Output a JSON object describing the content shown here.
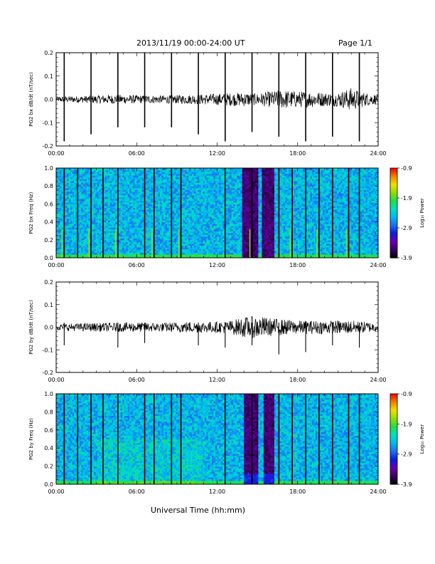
{
  "header": {
    "title": "2013/11/19  00:00-24:00 UT",
    "page": "Page 1/1"
  },
  "footer": {
    "xlabel": "Universal Time (hh:mm)"
  },
  "colors": {
    "trace": "#000000",
    "background": "#ffffff",
    "colorbar": [
      "#000000",
      "#3a0063",
      "#6a00b0",
      "#0a1de0",
      "#1f6ff0",
      "#00b8f0",
      "#00e0c0",
      "#20e040",
      "#90e000",
      "#f0e000",
      "#f08000",
      "#f00000"
    ]
  },
  "chart_data": [
    {
      "type": "line",
      "ylabel": "PG2 bx dB/dt (nT/sec)",
      "xlim": [
        0,
        24
      ],
      "ylim": [
        -0.2,
        0.2
      ],
      "xticks": [
        "00:00",
        "06:00",
        "12:00",
        "18:00",
        "24:00"
      ],
      "yticks": [
        "-0.2",
        "-0.1",
        "0.0",
        "0.1",
        "0.2"
      ],
      "spike_hours": [
        0.6,
        2.6,
        4.6,
        6.6,
        8.6,
        10.6,
        12.6,
        14.6,
        16.6,
        18.6,
        20.6,
        22.6
      ],
      "spike_min": [
        -0.18,
        -0.15,
        -0.12,
        -0.12,
        -0.12,
        -0.15,
        -0.18,
        -0.14,
        -0.16,
        -0.18,
        -0.16,
        -0.18
      ],
      "noise_envelope": {
        "hours": [
          0,
          2,
          4,
          6,
          8,
          10,
          12,
          13,
          14,
          15,
          16,
          17,
          18,
          19,
          20,
          21,
          22,
          23,
          24
        ],
        "amplitude": [
          0.012,
          0.015,
          0.02,
          0.018,
          0.017,
          0.02,
          0.025,
          0.028,
          0.03,
          0.025,
          0.035,
          0.04,
          0.035,
          0.035,
          0.03,
          0.03,
          0.05,
          0.03,
          0.02
        ]
      }
    },
    {
      "type": "heatmap",
      "ylabel": "PG2 bx Freq (Hz)",
      "xlim": [
        0,
        24
      ],
      "ylim": [
        0.0,
        1.0
      ],
      "xticks": [
        "00:00",
        "06:00",
        "12:00",
        "18:00",
        "24:00"
      ],
      "yticks": [
        "0.0",
        "0.2",
        "0.4",
        "0.6",
        "0.8",
        "1.0"
      ],
      "colorbar_label": "Log₁₀ Power",
      "colorbar_ticks": [
        "-0.9",
        "-1.9",
        "-2.9",
        "-3.9"
      ],
      "clim": [
        -3.9,
        -0.9
      ],
      "dark_band_hours": [
        13.9,
        15.1
      ],
      "dark_band_hours_2": [
        15.4,
        16.3
      ],
      "vertical_lines": [
        0.6,
        1.6,
        2.6,
        3.5,
        4.6,
        6.6,
        7.3,
        8.6,
        9.3,
        12.6,
        14.6,
        16.6,
        17.6,
        18.6,
        19.6,
        20.6,
        21.8,
        22.6
      ]
    },
    {
      "type": "line",
      "ylabel": "PG2 by dB/dt (nT/sec)",
      "xlim": [
        0,
        24
      ],
      "ylim": [
        -0.2,
        0.2
      ],
      "xticks": [
        "00:00",
        "06:00",
        "12:00",
        "18:00",
        "24:00"
      ],
      "yticks": [
        "-0.2",
        "-0.1",
        "0.0",
        "0.1",
        "0.2"
      ],
      "spike_hours": [
        0.6,
        4.6,
        6.6,
        10.6,
        12.6,
        14.6,
        16.6,
        18.6,
        20.6,
        22.6
      ],
      "spike_min": [
        -0.08,
        -0.09,
        -0.07,
        -0.08,
        -0.09,
        -0.08,
        -0.12,
        -0.11,
        -0.08,
        -0.09
      ],
      "noise_envelope": {
        "hours": [
          0,
          2,
          4,
          6,
          8,
          10,
          12,
          13,
          14,
          15,
          16,
          17,
          18,
          19,
          20,
          21,
          22,
          23,
          24
        ],
        "amplitude": [
          0.015,
          0.018,
          0.02,
          0.022,
          0.02,
          0.025,
          0.025,
          0.03,
          0.045,
          0.05,
          0.04,
          0.035,
          0.03,
          0.03,
          0.03,
          0.03,
          0.03,
          0.025,
          0.02
        ]
      }
    },
    {
      "type": "heatmap",
      "ylabel": "PG2 by Freq (Hz)",
      "xlim": [
        0,
        24
      ],
      "ylim": [
        0.0,
        1.0
      ],
      "xticks": [
        "00:00",
        "06:00",
        "12:00",
        "18:00",
        "24:00"
      ],
      "yticks": [
        "0.0",
        "0.2",
        "0.4",
        "0.6",
        "0.8",
        "1.0"
      ],
      "colorbar_label": "Log₁₀ Power",
      "colorbar_ticks": [
        "-0.9",
        "-1.9",
        "-2.9",
        "-3.9"
      ],
      "clim": [
        -3.9,
        -0.9
      ],
      "dark_band_hours": [
        14.0,
        15.1
      ],
      "dark_band_hours_2": [
        15.5,
        16.3
      ],
      "vertical_lines": [
        0.6,
        1.6,
        2.6,
        3.5,
        4.6,
        6.6,
        7.3,
        8.6,
        9.3,
        12.6,
        14.6,
        16.6,
        17.6,
        18.6,
        19.6,
        20.6,
        21.8,
        22.6
      ]
    }
  ]
}
